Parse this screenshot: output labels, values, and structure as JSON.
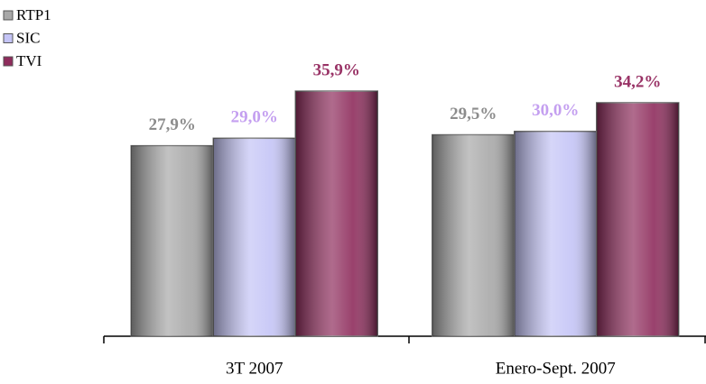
{
  "chart_data": {
    "type": "bar",
    "categories": [
      "3T 2007",
      "Enero-Sept. 2007"
    ],
    "series": [
      {
        "name": "RTP1",
        "color": "#a8a8a8",
        "label_color": "#8c8c8c",
        "values": [
          27.9,
          29.5
        ],
        "value_labels": [
          "27,9%",
          "29,5%"
        ]
      },
      {
        "name": "SIC",
        "color": "#c4c4f6",
        "label_color": "#c49ff0",
        "values": [
          29.0,
          30.0
        ],
        "value_labels": [
          "29,0%",
          "30,0%"
        ]
      },
      {
        "name": "TVI",
        "color": "#8e2c5c",
        "label_color": "#993366",
        "values": [
          35.9,
          34.2
        ],
        "value_labels": [
          "35,9%",
          "34,2%"
        ]
      }
    ],
    "ylim": [
      0,
      40
    ],
    "legend": "top-left"
  }
}
